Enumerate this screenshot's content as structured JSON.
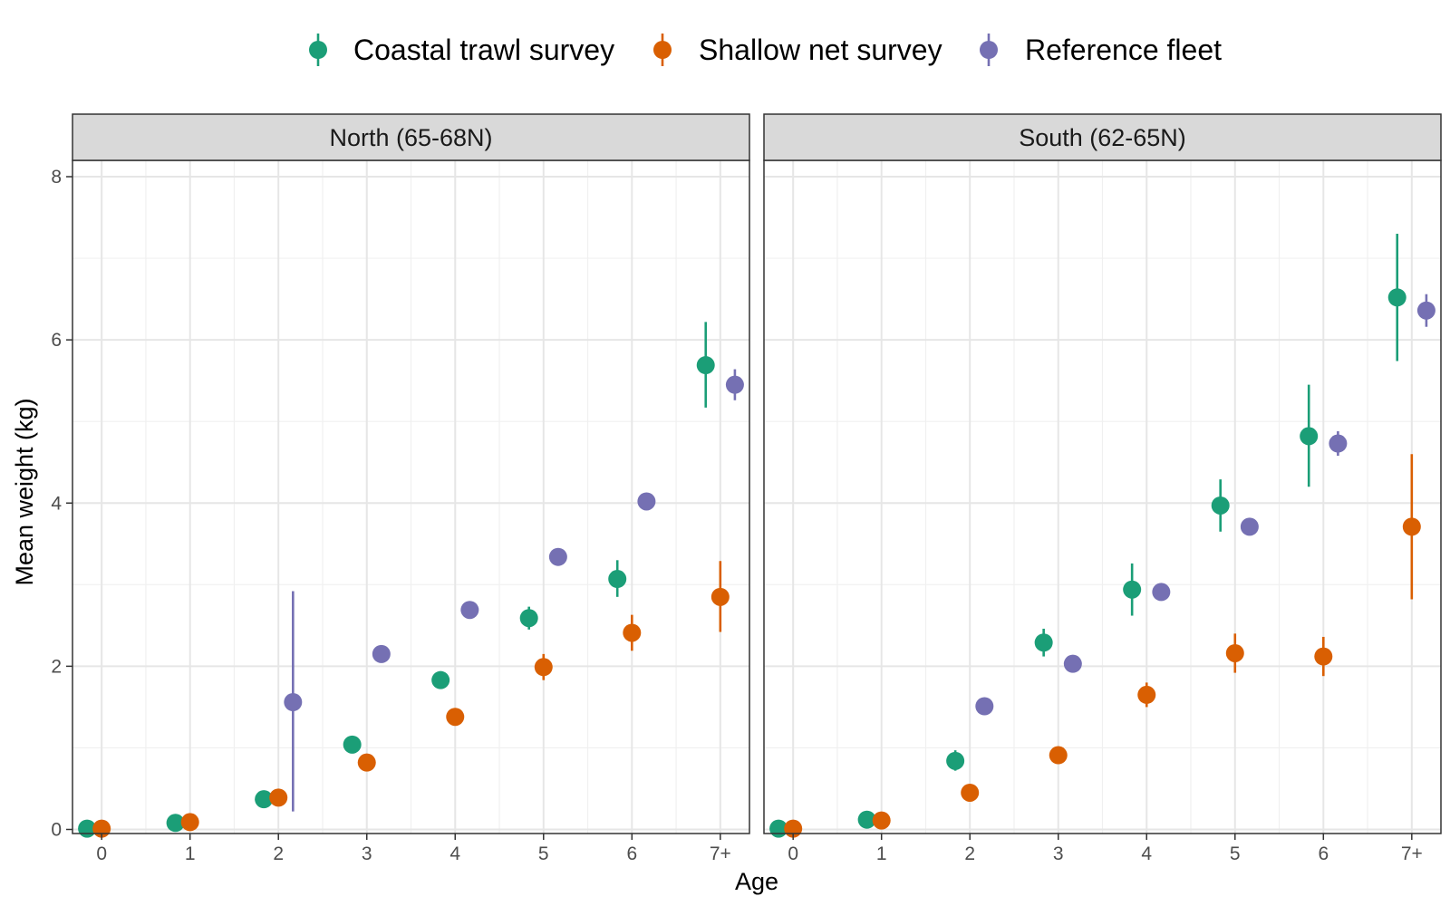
{
  "chart_data": {
    "type": "scatter",
    "xlabel": "Age",
    "ylabel": "Mean weight (kg)",
    "x_categories": [
      "0",
      "1",
      "2",
      "3",
      "4",
      "5",
      "6",
      "7+"
    ],
    "y_ticks": [
      0,
      2,
      4,
      6,
      8
    ],
    "ylim": [
      -0.05,
      8.2
    ],
    "grid": true,
    "legend_position": "top",
    "series_styles": [
      {
        "name": "Coastal trawl survey",
        "color": "#1b9e77"
      },
      {
        "name": "Shallow net survey",
        "color": "#d95f02"
      },
      {
        "name": "Reference fleet",
        "color": "#7570b3"
      }
    ],
    "panels": [
      {
        "title": "North (65-68N)",
        "series": [
          {
            "name": "Coastal trawl survey",
            "values": [
              0.01,
              0.08,
              0.37,
              1.04,
              1.83,
              2.59,
              3.07,
              5.69
            ],
            "lower": [
              0.01,
              0.08,
              0.35,
              1.02,
              1.81,
              2.45,
              2.85,
              5.17
            ],
            "upper": [
              0.01,
              0.08,
              0.39,
              1.06,
              1.85,
              2.73,
              3.3,
              6.22
            ]
          },
          {
            "name": "Shallow net survey",
            "values": [
              0.01,
              0.09,
              0.39,
              0.82,
              1.38,
              1.99,
              2.41,
              2.85
            ],
            "lower": [
              0.01,
              0.09,
              0.37,
              0.8,
              1.36,
              1.83,
              2.19,
              2.42
            ],
            "upper": [
              0.01,
              0.09,
              0.41,
              0.84,
              1.4,
              2.15,
              2.63,
              3.29
            ]
          },
          {
            "name": "Reference fleet",
            "values": [
              null,
              null,
              1.56,
              2.15,
              2.69,
              3.34,
              4.02,
              5.45
            ],
            "lower": [
              null,
              null,
              0.22,
              2.05,
              2.69,
              3.34,
              4.02,
              5.26
            ],
            "upper": [
              null,
              null,
              2.92,
              2.25,
              2.69,
              3.34,
              4.02,
              5.64
            ]
          }
        ]
      },
      {
        "title": "South (62-65N)",
        "series": [
          {
            "name": "Coastal trawl survey",
            "values": [
              0.01,
              0.12,
              0.84,
              2.29,
              2.94,
              3.97,
              4.82,
              6.52
            ],
            "lower": [
              0.01,
              0.12,
              0.72,
              2.12,
              2.62,
              3.65,
              4.2,
              5.74
            ],
            "upper": [
              0.01,
              0.12,
              0.97,
              2.46,
              3.26,
              4.29,
              5.45,
              7.3
            ]
          },
          {
            "name": "Shallow net survey",
            "values": [
              0.01,
              0.11,
              0.45,
              0.91,
              1.65,
              2.16,
              2.12,
              3.71
            ],
            "lower": [
              0.01,
              0.11,
              0.45,
              0.91,
              1.5,
              1.92,
              1.88,
              2.82
            ],
            "upper": [
              0.01,
              0.11,
              0.45,
              0.91,
              1.8,
              2.4,
              2.36,
              4.6
            ]
          },
          {
            "name": "Reference fleet",
            "values": [
              null,
              null,
              1.51,
              2.03,
              2.91,
              3.71,
              4.73,
              6.36
            ],
            "lower": [
              null,
              null,
              1.51,
              2.03,
              2.91,
              3.71,
              4.58,
              6.16
            ],
            "upper": [
              null,
              null,
              1.51,
              2.03,
              2.91,
              3.71,
              4.88,
              6.56
            ]
          }
        ]
      }
    ]
  }
}
